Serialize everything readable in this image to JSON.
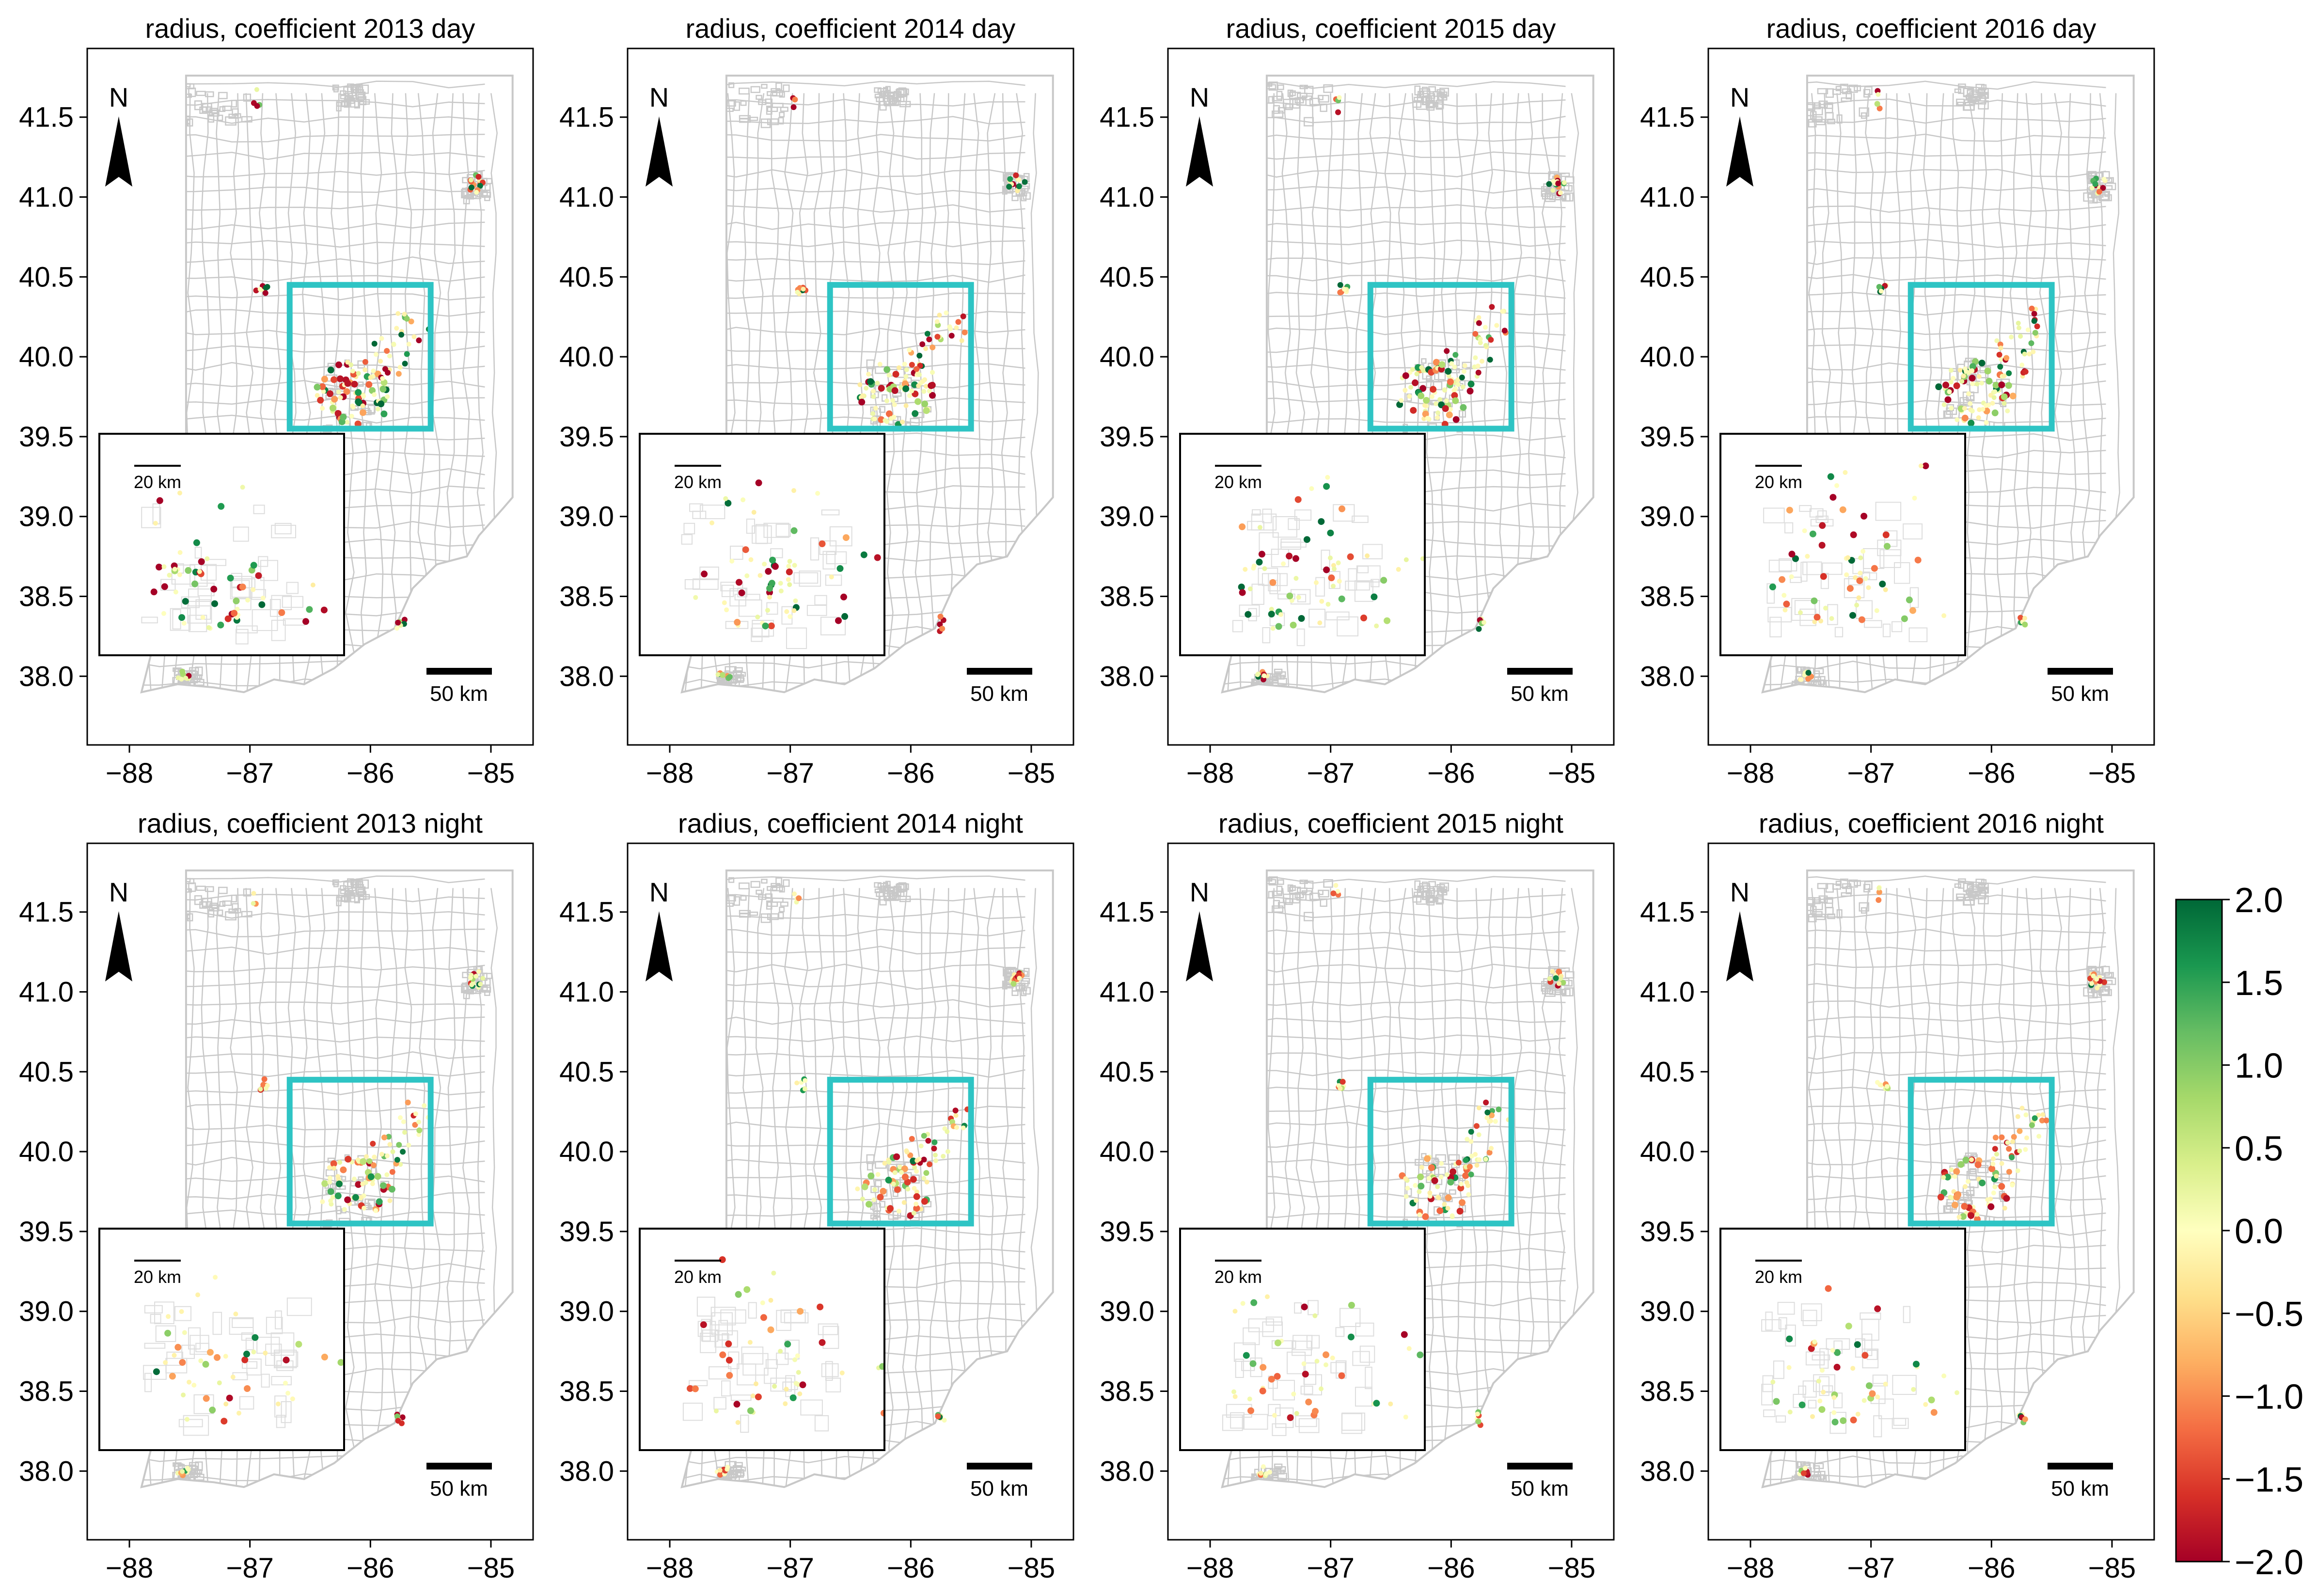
{
  "figure": {
    "panels": [
      {
        "title": "radius, coefficient 2013 day",
        "seed": 11
      },
      {
        "title": "radius, coefficient 2014 day",
        "seed": 23
      },
      {
        "title": "radius, coefficient 2015 day",
        "seed": 37
      },
      {
        "title": "radius, coefficient 2016 day",
        "seed": 41
      },
      {
        "title": "radius, coefficient 2013 night",
        "seed": 53
      },
      {
        "title": "radius, coefficient 2014 night",
        "seed": 67
      },
      {
        "title": "radius, coefficient 2015 night",
        "seed": 79
      },
      {
        "title": "radius, coefficient 2016 night",
        "seed": 83
      }
    ],
    "x_ticks": [
      "−88",
      "−87",
      "−86",
      "−85"
    ],
    "x_tick_values": [
      -88,
      -87,
      -86,
      -85
    ],
    "y_ticks": [
      "38.0",
      "38.5",
      "39.0",
      "39.5",
      "40.0",
      "40.5",
      "41.0",
      "41.5"
    ],
    "y_tick_values": [
      38.0,
      38.5,
      39.0,
      39.5,
      40.0,
      40.5,
      41.0,
      41.5
    ],
    "xlim": [
      -88.35,
      -84.65
    ],
    "ylim": [
      37.57,
      41.93
    ],
    "north_label": "N",
    "scale_bar_label": "50 km",
    "inset_scale_label": "20 km",
    "inset_box_extent": {
      "lon": [
        -86.67,
        -85.5
      ],
      "lat": [
        39.55,
        40.45
      ]
    },
    "colorbar": {
      "ticks": [
        "2.0",
        "1.5",
        "1.0",
        "0.5",
        "0.0",
        "−0.5",
        "−1.0",
        "−1.5",
        "−2.0"
      ],
      "tick_values": [
        2.0,
        1.5,
        1.0,
        0.5,
        0.0,
        -0.5,
        -1.0,
        -1.5,
        -2.0
      ],
      "range": [
        -2.0,
        2.0
      ],
      "colormap": "RdYlGn"
    },
    "colors": {
      "box": "#2ec4c4",
      "boundaries": "#c8c8c8",
      "frame": "#000000"
    }
  }
}
